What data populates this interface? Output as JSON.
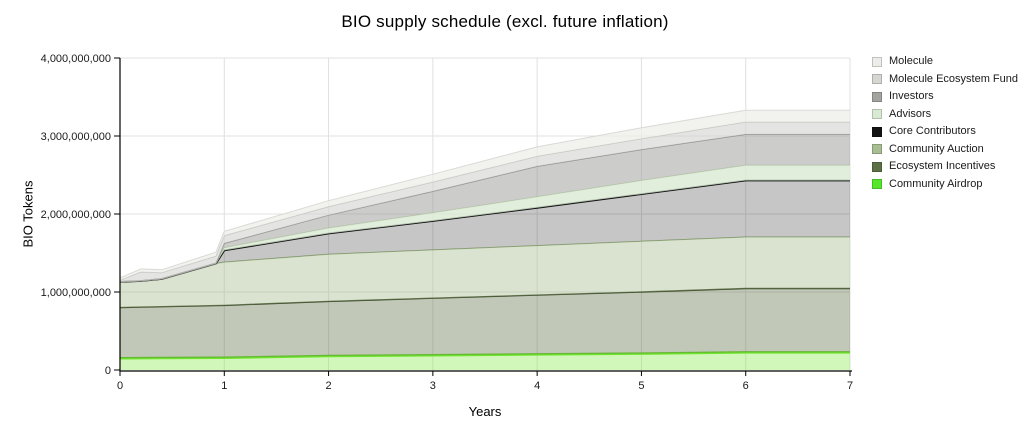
{
  "title": "BIO supply schedule (excl. future inflation)",
  "y_axis": {
    "title": "BIO Tokens",
    "tick_values_millions": [
      0,
      1000,
      2000,
      3000,
      4000
    ],
    "tick_labels": [
      "0",
      "1,000,000,000",
      "2,000,000,000",
      "3,000,000,000",
      "4,000,000,000"
    ]
  },
  "x_axis": {
    "title": "Years",
    "tick_values": [
      0,
      1,
      2,
      3,
      4,
      5,
      6,
      7
    ],
    "tick_labels": [
      "0",
      "1",
      "2",
      "3",
      "4",
      "5",
      "6",
      "7"
    ]
  },
  "legend": [
    {
      "label": "Molecule",
      "color": "#ecece8"
    },
    {
      "label": "Molecule Ecosystem Fund",
      "color": "#d6d6d3"
    },
    {
      "label": "Investors",
      "color": "#a3a39f"
    },
    {
      "label": "Advisors",
      "color": "#d9ead3"
    },
    {
      "label": "Core Contributors",
      "color": "#141414"
    },
    {
      "label": "Community Auction",
      "color": "#a8bd90"
    },
    {
      "label": "Ecosystem Incentives",
      "color": "#5c6f45"
    },
    {
      "label": "Community Airdrop",
      "color": "#58e62c"
    }
  ],
  "chart_data": {
    "type": "area",
    "stacked": true,
    "title": "BIO supply schedule (excl. future inflation)",
    "xlabel": "Years",
    "ylabel": "BIO Tokens",
    "xlim": [
      0,
      7
    ],
    "ylim_millions": [
      0,
      4000
    ],
    "grid": true,
    "legend_position": "right",
    "values_unit": "million BIO tokens (cumulative unlocked)",
    "x": [
      0,
      0.2,
      0.4,
      0.92,
      1,
      2,
      3,
      4,
      5,
      6,
      7
    ],
    "series": [
      {
        "name": "Community Airdrop",
        "values": [
          150,
          152,
          154,
          157,
          158,
          180,
          190,
          200,
          210,
          225,
          225
        ],
        "fill": "#7de83b",
        "fill_opacity": 0.35,
        "stroke": "#6ee52c",
        "stroke_width": 2.5
      },
      {
        "name": "Ecosystem Incentives",
        "values": [
          650,
          654,
          658,
          668,
          670,
          700,
          730,
          760,
          790,
          820,
          820
        ],
        "fill": "#5c6f45",
        "fill_opacity": 0.38,
        "stroke": "#3f4d2c",
        "stroke_width": 1.4
      },
      {
        "name": "Community Auction",
        "values": [
          330,
          335,
          355,
          540,
          555,
          605,
          620,
          635,
          650,
          660,
          660
        ],
        "fill": "#a8bd90",
        "fill_opacity": 0.42,
        "stroke": "#9ab482",
        "stroke_width": 1
      },
      {
        "name": "Core Contributors",
        "values": [
          0,
          0,
          0,
          0,
          150,
          265,
          370,
          485,
          605,
          725,
          725
        ],
        "fill": "#1a1a1a",
        "fill_opacity": 0.25,
        "stroke": "#111111",
        "stroke_width": 1.8
      },
      {
        "name": "Advisors",
        "values": [
          0,
          0,
          0,
          0,
          35,
          70,
          105,
          140,
          175,
          195,
          195
        ],
        "fill": "#d9ead3",
        "fill_opacity": 0.8,
        "stroke": "#c6dcb9",
        "stroke_width": 1
      },
      {
        "name": "Investors",
        "values": [
          0,
          0,
          0,
          0,
          55,
          165,
          275,
          390,
          395,
          395,
          395
        ],
        "fill": "#9a9a96",
        "fill_opacity": 0.5,
        "stroke": "#8a8a86",
        "stroke_width": 1
      },
      {
        "name": "Molecule Ecosystem Fund",
        "values": [
          20,
          115,
          80,
          95,
          100,
          110,
          120,
          130,
          140,
          160,
          160
        ],
        "fill": "#d6d6d3",
        "fill_opacity": 0.65,
        "stroke": "#bfbfbc",
        "stroke_width": 1
      },
      {
        "name": "Molecule",
        "values": [
          30,
          40,
          38,
          50,
          55,
          75,
          100,
          120,
          140,
          150,
          150
        ],
        "fill": "#ecece8",
        "fill_opacity": 0.7,
        "stroke": "#d9d9d5",
        "stroke_width": 1
      }
    ]
  }
}
